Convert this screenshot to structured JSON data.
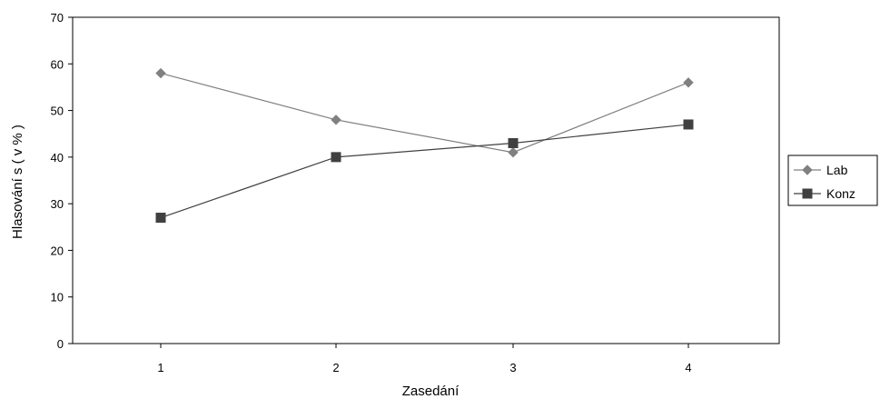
{
  "chart_data": {
    "type": "line",
    "title": "",
    "xlabel": "Zasedání",
    "ylabel": "Hlasování s ( v % )",
    "categories": [
      "1",
      "2",
      "3",
      "4"
    ],
    "ylim": [
      0,
      70
    ],
    "yticks": [
      "0",
      "10",
      "20",
      "30",
      "40",
      "50",
      "60",
      "70"
    ],
    "grid": false,
    "legend_position": "right",
    "series": [
      {
        "name": "Lab",
        "values": [
          58,
          48,
          41,
          56
        ],
        "color": "#808080",
        "marker": "diamond"
      },
      {
        "name": "Konz",
        "values": [
          27,
          40,
          43,
          47
        ],
        "color": "#404040",
        "marker": "square"
      }
    ]
  }
}
